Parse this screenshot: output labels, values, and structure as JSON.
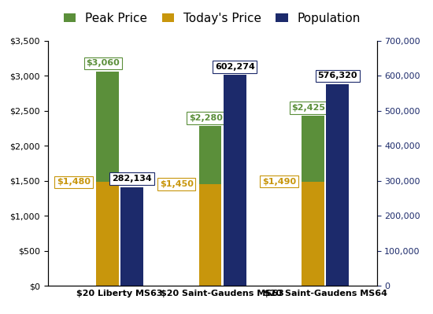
{
  "chart_data": {
    "type": "bar",
    "categories": [
      "$20 Liberty MS63",
      "$20 Saint-Gaudens MS63",
      "$20 Saint-Gaudens MS64"
    ],
    "stacked": false,
    "data_labels": true,
    "grid": false,
    "legend": "upper center",
    "series": [
      {
        "name": "Peak Price",
        "color": "#5b8f3a",
        "values": [
          3060,
          2280,
          2425
        ],
        "value_labels": [
          "$3,060",
          "$2,280",
          "$2,425"
        ]
      },
      {
        "name": "Today's Price",
        "color": "#c8960c",
        "values": [
          1480,
          1450,
          1490
        ],
        "value_labels": [
          "$1,480",
          "$1,450",
          "$1,490"
        ]
      },
      {
        "name": "Population",
        "color": "#1c2a6b",
        "axis": "y2",
        "values": [
          282134,
          602274,
          576320
        ],
        "value_labels": [
          "282,134",
          "602,274",
          "576,320"
        ]
      }
    ],
    "ylim": [
      0,
      3500
    ],
    "yticks": [
      {
        "value": 0,
        "label": "$0"
      },
      {
        "value": 500,
        "label": "$500"
      },
      {
        "value": 1000,
        "label": "$1,000"
      },
      {
        "value": 1500,
        "label": "$1,500"
      },
      {
        "value": 2000,
        "label": "$2,000"
      },
      {
        "value": 2500,
        "label": "$2,500"
      },
      {
        "value": 3000,
        "label": "$3,000"
      },
      {
        "value": 3500,
        "label": "$3,500"
      }
    ],
    "y2lim": [
      0,
      700000
    ],
    "y2ticks": [
      0,
      {
        "value": 100000,
        "label": "100,000"
      },
      {
        "value": 200000,
        "label": "200,000"
      },
      {
        "value": 300000,
        "label": "300,000"
      },
      {
        "value": 400000,
        "label": "400,000"
      },
      {
        "value": 500000,
        "label": "500,000"
      },
      {
        "value": 600000,
        "label": "600,000"
      },
      {
        "value": 700000,
        "label": "700,000"
      }
    ]
  }
}
